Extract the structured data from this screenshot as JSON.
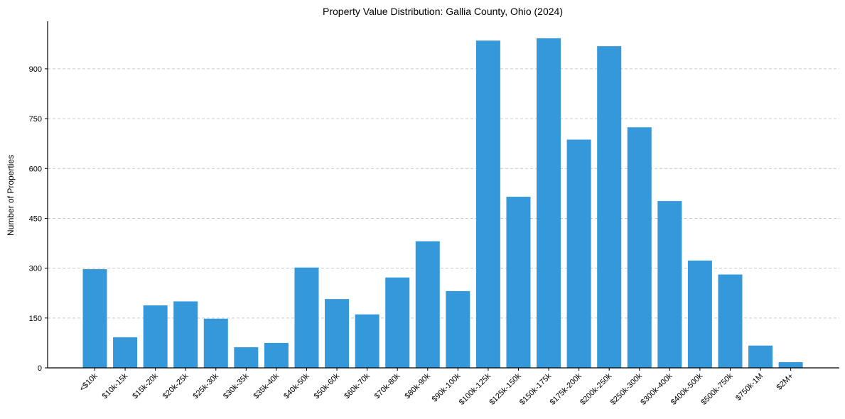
{
  "chart_data": {
    "type": "bar",
    "title": "Property Value Distribution: Gallia County, Ohio (2024)",
    "xlabel": "",
    "ylabel": "Number of Properties",
    "categories": [
      "<$10k",
      "$10k-15k",
      "$15k-20k",
      "$20k-25k",
      "$25k-30k",
      "$30k-35k",
      "$35k-40k",
      "$40k-50k",
      "$50k-60k",
      "$60k-70k",
      "$70k-80k",
      "$80k-90k",
      "$90k-100k",
      "$100k-125k",
      "$125k-150k",
      "$150k-175k",
      "$175k-200k",
      "$200k-250k",
      "$250k-300k",
      "$300k-400k",
      "$400k-500k",
      "$500k-750k",
      "$750k-1M",
      "$2M+"
    ],
    "values": [
      297,
      92,
      188,
      200,
      148,
      62,
      75,
      302,
      207,
      161,
      272,
      381,
      231,
      985,
      515,
      992,
      687,
      968,
      724,
      502,
      323,
      281,
      67,
      17
    ],
    "ylim": [
      0,
      1043
    ],
    "yticks": [
      0,
      150,
      300,
      450,
      600,
      750,
      900
    ],
    "grid": "y-dashed",
    "bar_color": "#3498db"
  }
}
